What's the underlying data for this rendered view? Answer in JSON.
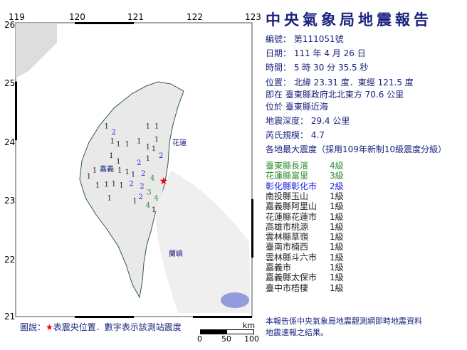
{
  "report": {
    "title": "中央氣象局地震報告",
    "number": "編號： 第111051號",
    "date": "日期： 111 年 4 月 26 日",
    "time": "時間： 5 時 30 分 35.5 秒",
    "location": "位置： 北緯 23.31 度．東經 121.5 度",
    "relative": "即在 臺東縣政府北北東方 70.6 公里",
    "region": "位於 臺東縣近海",
    "depth": "地震深度： 29.4 公里",
    "magnitude": "芮氏規模： 4.7",
    "intensity_header": "各地最大震度（採用109年新制10級震度分級）"
  },
  "stations": [
    {
      "name": "臺東縣長濱",
      "level": "4級",
      "color": "#2e8b2e"
    },
    {
      "name": "花蓮縣富里",
      "level": "3級",
      "color": "#2e8b2e"
    },
    {
      "name": "彰化縣彰化市",
      "level": "2級",
      "color": "#1f1fe0"
    },
    {
      "name": "南投縣玉山",
      "level": "1級",
      "color": "#222222"
    },
    {
      "name": "嘉義縣阿里山",
      "level": "1級",
      "color": "#222222"
    },
    {
      "name": "花蓮縣花蓮市",
      "level": "1級",
      "color": "#222222"
    },
    {
      "name": "高雄市桃源",
      "level": "1級",
      "color": "#222222"
    },
    {
      "name": "雲林縣草嶺",
      "level": "1級",
      "color": "#222222"
    },
    {
      "name": "臺南市楠西",
      "level": "1級",
      "color": "#222222"
    },
    {
      "name": "雲林縣斗六市",
      "level": "1級",
      "color": "#222222"
    },
    {
      "name": "嘉義市",
      "level": "1級",
      "color": "#222222"
    },
    {
      "name": "嘉義縣太保市",
      "level": "1級",
      "color": "#222222"
    },
    {
      "name": "臺中市梧棲",
      "level": "1級",
      "color": "#222222"
    }
  ],
  "footer": [
    "本報告係中央氣象局地震觀測網即時地震資料",
    "地震速報之結果。"
  ],
  "map": {
    "lon_ticks": [
      "119",
      "120",
      "121",
      "122",
      "123"
    ],
    "lat_ticks": [
      "26",
      "25",
      "24",
      "23",
      "22",
      "21"
    ],
    "place_labels": [
      "花蓮",
      "嘉義",
      "蘭嶼"
    ],
    "legend_prefix": "圖說：",
    "legend_star": "★",
    "legend_text": "表震央位置．數字表示該測站震度",
    "scale_unit": "km",
    "scale_ticks": [
      "0",
      "50",
      "100"
    ],
    "epicenter": {
      "lat": 23.31,
      "lon": 121.5
    },
    "map_marks": [
      {
        "v": "1",
        "lon": 120.5,
        "lat": 24.2,
        "c": "#222"
      },
      {
        "v": "2",
        "lon": 120.55,
        "lat": 24.1,
        "c": "#1f1fe0"
      },
      {
        "v": "1",
        "lon": 120.6,
        "lat": 23.95,
        "c": "#222"
      },
      {
        "v": "1",
        "lon": 120.7,
        "lat": 23.9,
        "c": "#222"
      },
      {
        "v": "1",
        "lon": 120.85,
        "lat": 23.9,
        "c": "#222"
      },
      {
        "v": "1",
        "lon": 121.05,
        "lat": 23.95,
        "c": "#222"
      },
      {
        "v": "1",
        "lon": 121.2,
        "lat": 24.2,
        "c": "#222"
      },
      {
        "v": "1",
        "lon": 121.35,
        "lat": 24.2,
        "c": "#222"
      },
      {
        "v": "1",
        "lon": 121.35,
        "lat": 23.98,
        "c": "#222"
      },
      {
        "v": "1",
        "lon": 121.2,
        "lat": 23.85,
        "c": "#222"
      },
      {
        "v": "1",
        "lon": 121.3,
        "lat": 23.82,
        "c": "#222"
      },
      {
        "v": "2",
        "lon": 121.35,
        "lat": 23.7,
        "c": "#1f1fe0"
      },
      {
        "v": "1",
        "lon": 121.2,
        "lat": 23.65,
        "c": "#222"
      },
      {
        "v": "1",
        "lon": 120.58,
        "lat": 23.7,
        "c": "#222"
      },
      {
        "v": "1",
        "lon": 120.7,
        "lat": 23.6,
        "c": "#222"
      },
      {
        "v": "1",
        "lon": 120.5,
        "lat": 23.45,
        "c": "#222"
      },
      {
        "v": "1",
        "lon": 120.3,
        "lat": 23.45,
        "c": "#222"
      },
      {
        "v": "1",
        "lon": 120.2,
        "lat": 23.35,
        "c": "#222"
      },
      {
        "v": "1",
        "lon": 120.65,
        "lat": 23.45,
        "c": "#222"
      },
      {
        "v": "1",
        "lon": 120.85,
        "lat": 23.42,
        "c": "#222"
      },
      {
        "v": "1",
        "lon": 120.95,
        "lat": 23.38,
        "c": "#222"
      },
      {
        "v": "2",
        "lon": 121.12,
        "lat": 23.58,
        "c": "#1f1fe0"
      },
      {
        "v": "2",
        "lon": 121.12,
        "lat": 23.4,
        "c": "#1f1fe0"
      },
      {
        "v": "4",
        "lon": 121.42,
        "lat": 23.32,
        "c": "#2e8b2e"
      },
      {
        "v": "2",
        "lon": 120.92,
        "lat": 23.22,
        "c": "#1f1fe0"
      },
      {
        "v": "2",
        "lon": 121.1,
        "lat": 23.18,
        "c": "#1f1fe0"
      },
      {
        "v": "3",
        "lon": 121.22,
        "lat": 23.2,
        "c": "#2e8b2e"
      },
      {
        "v": "2",
        "lon": 121.08,
        "lat": 23.12,
        "c": "#1f1fe0"
      },
      {
        "v": "4",
        "lon": 121.27,
        "lat": 23.1,
        "c": "#2e8b2e"
      },
      {
        "v": "4",
        "lon": 121.2,
        "lat": 22.98,
        "c": "#2e8b2e"
      },
      {
        "v": "1",
        "lon": 120.35,
        "lat": 23.2,
        "c": "#222"
      },
      {
        "v": "1",
        "lon": 120.55,
        "lat": 23.22,
        "c": "#222"
      },
      {
        "v": "1",
        "lon": 120.75,
        "lat": 23.2,
        "c": "#222"
      },
      {
        "v": "1",
        "lon": 120.55,
        "lat": 22.98,
        "c": "#222"
      },
      {
        "v": "1",
        "lon": 120.98,
        "lat": 22.93,
        "c": "#222"
      },
      {
        "v": "1",
        "lon": 121.3,
        "lat": 22.78,
        "c": "#222"
      }
    ]
  }
}
